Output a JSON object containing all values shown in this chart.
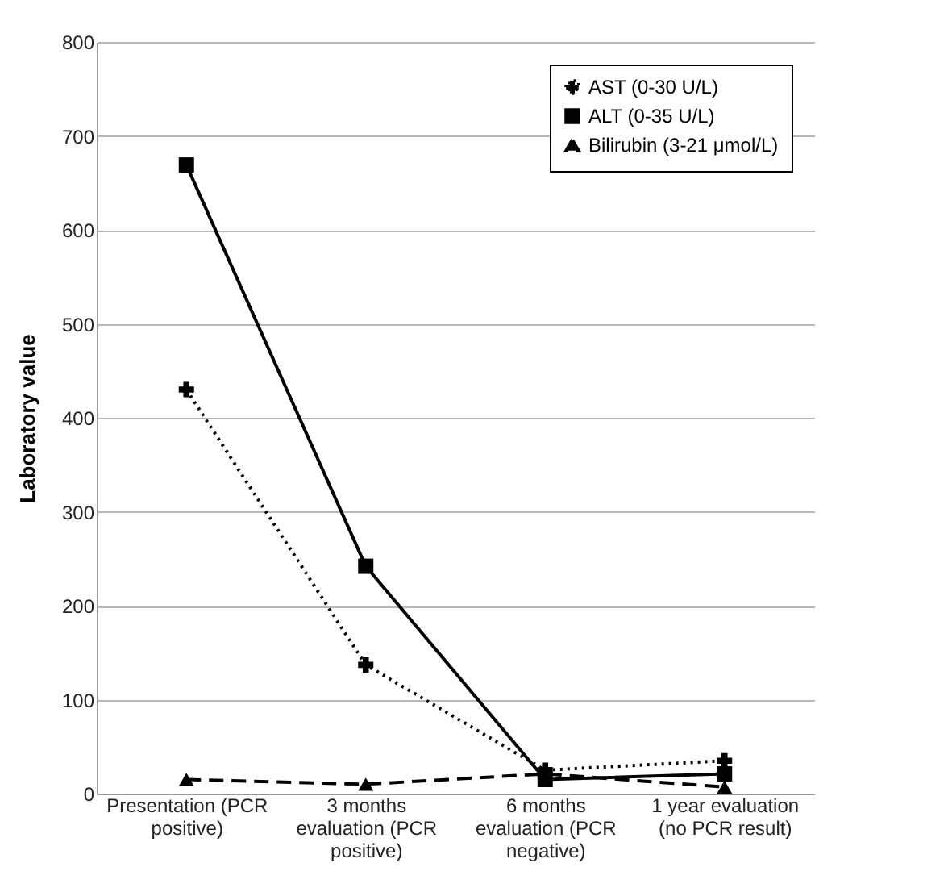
{
  "chart_data": {
    "type": "line",
    "ylabel": "Laboratory value",
    "categories": [
      "Presentation (PCR positive)",
      "3 months evaluation (PCR positive)",
      "6 months evaluation (PCR negative)",
      "1 year evaluation (no PCR result)"
    ],
    "series": [
      {
        "name": "AST (0-30 U/L)",
        "color": "#000000",
        "values": [
          430,
          137,
          25,
          35
        ],
        "line_style": "dotted",
        "marker": "cross"
      },
      {
        "name": "ALT (0-35 U/L)",
        "color": "#000000",
        "values": [
          669,
          242,
          15,
          21
        ],
        "line_style": "solid",
        "marker": "square"
      },
      {
        "name": "Bilirubin (3-21 μmol/L)",
        "color": "#000000",
        "values": [
          15,
          10,
          21,
          7
        ],
        "line_style": "dashed",
        "marker": "triangle"
      }
    ],
    "ylim": [
      0,
      800
    ],
    "yticks": [
      0,
      100,
      200,
      300,
      400,
      500,
      600,
      700,
      800
    ],
    "grid": "y",
    "legend": "top right"
  }
}
